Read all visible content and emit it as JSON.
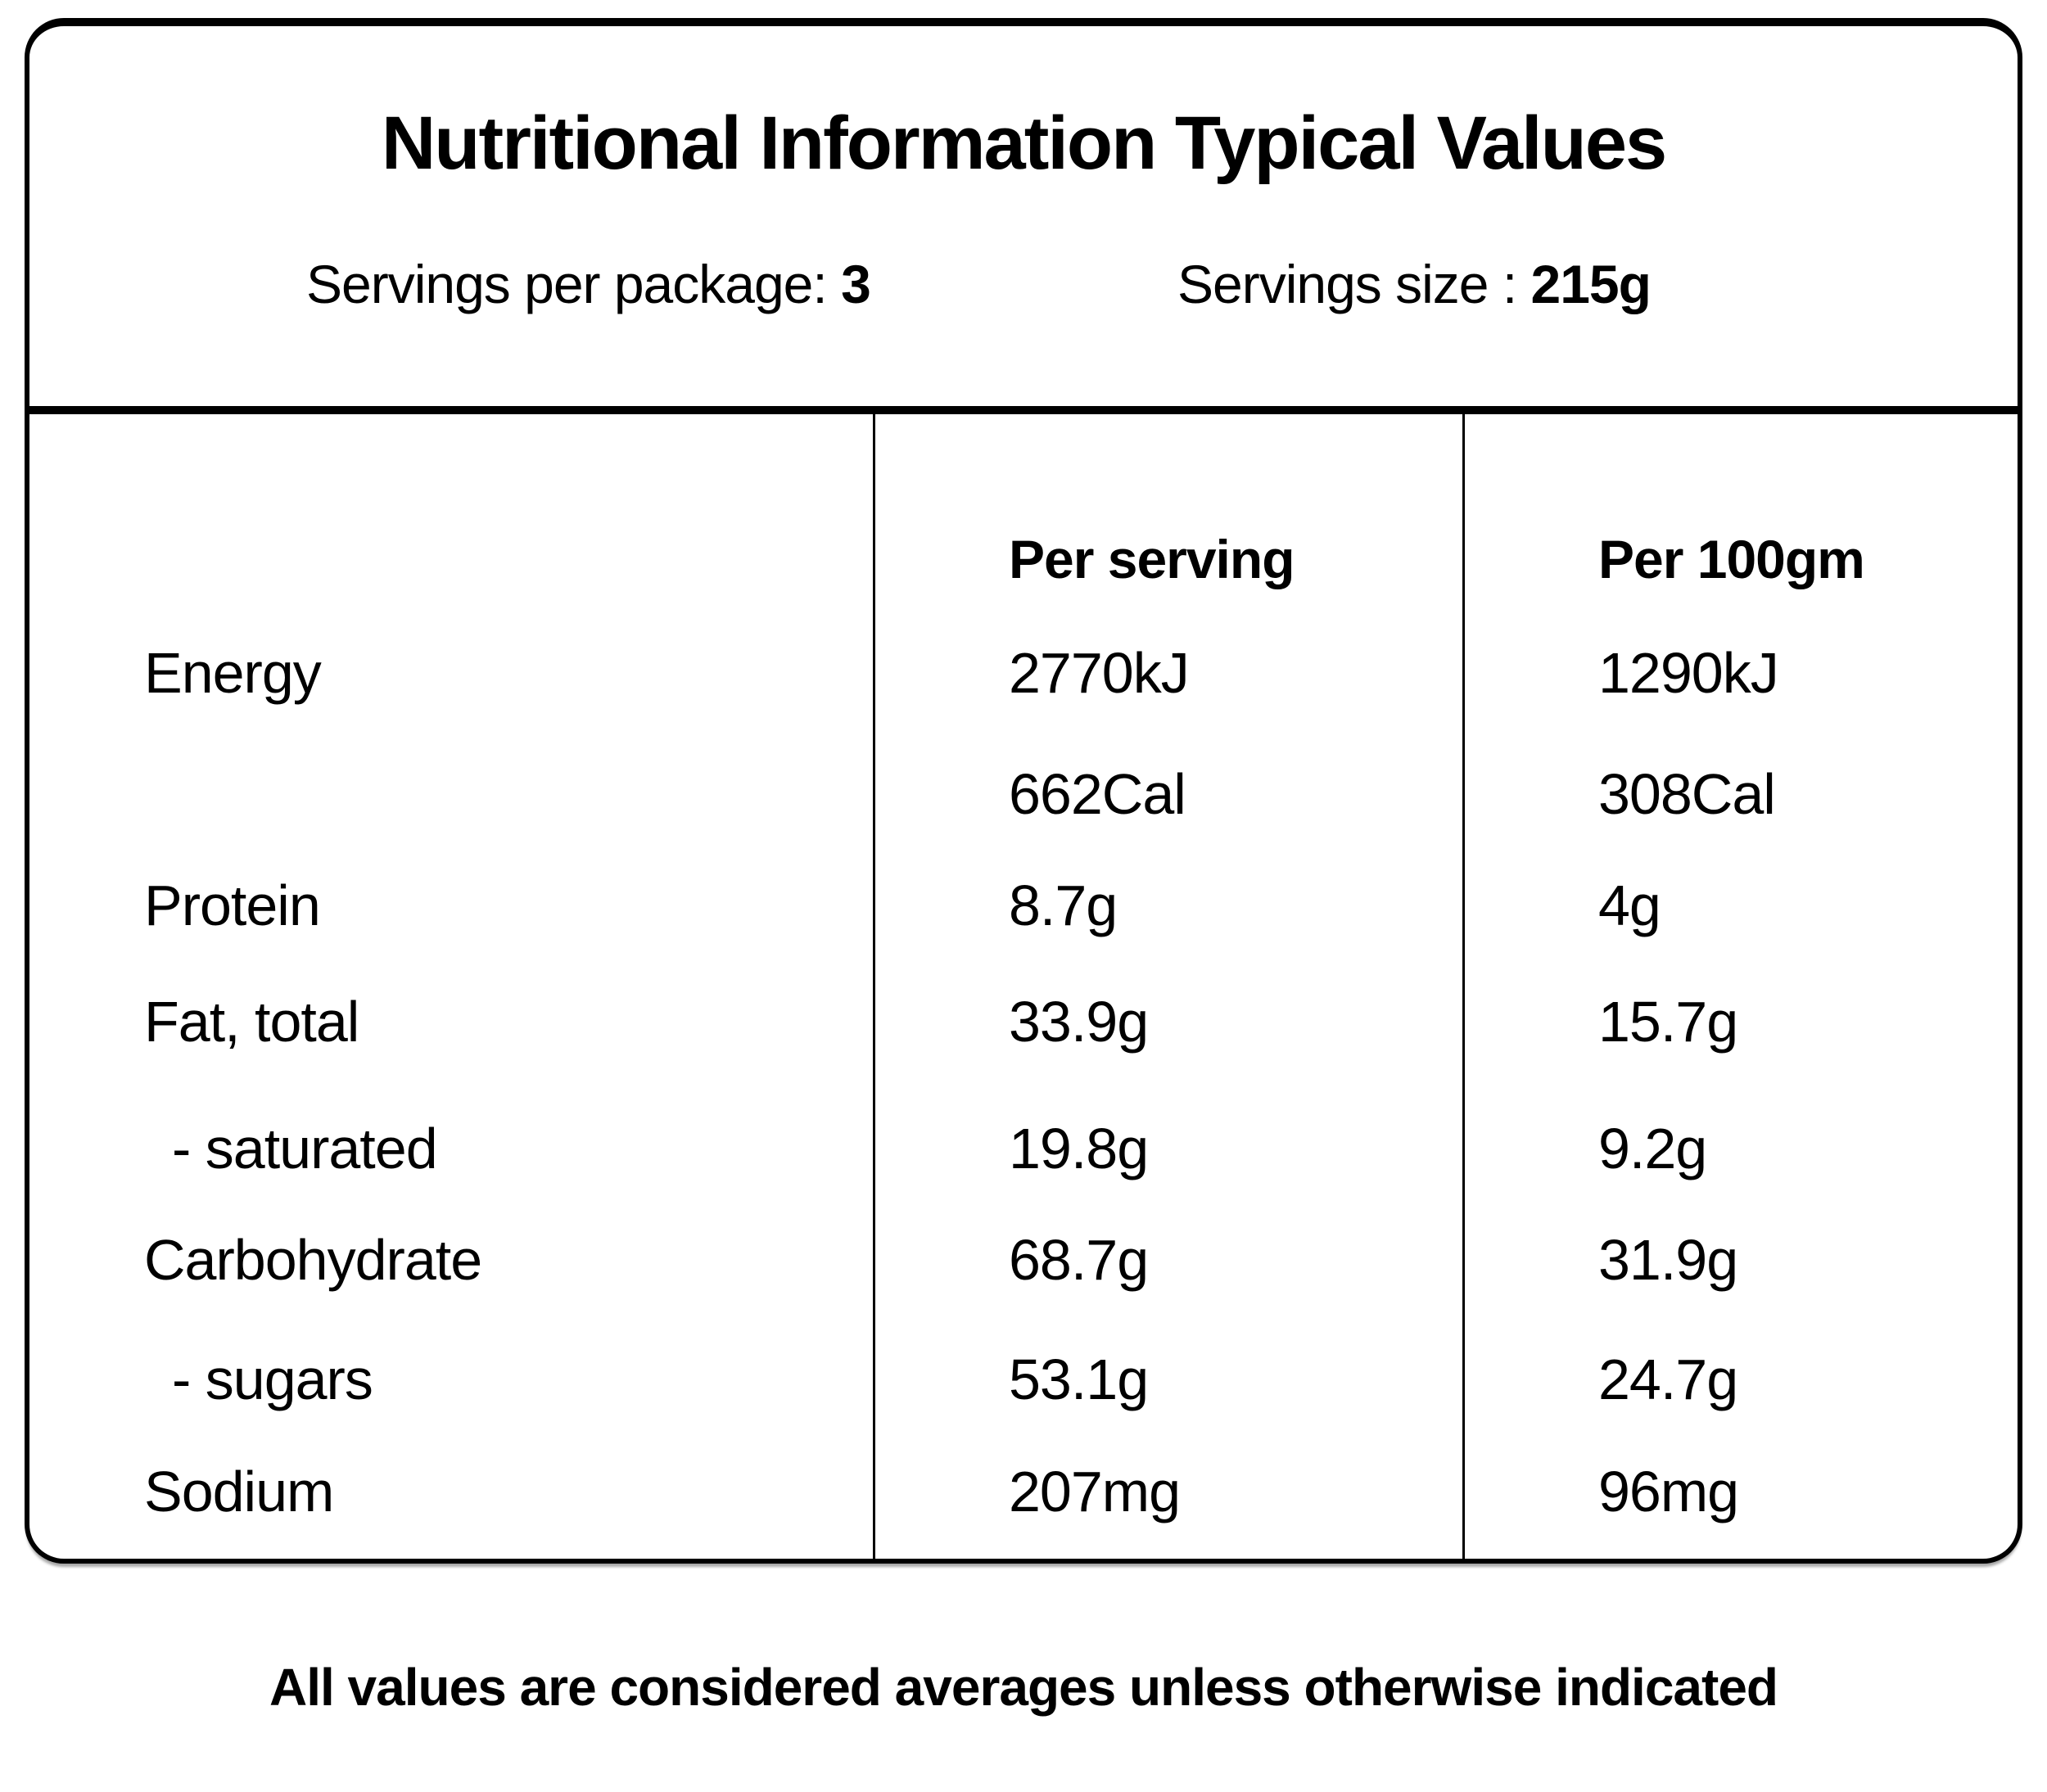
{
  "title": "Nutritional Information Typical Values",
  "servings": {
    "per_package_label": "Servings per package:",
    "per_package_value": "3",
    "size_label": "Servings size :",
    "size_value": "215g"
  },
  "table": {
    "columns": {
      "per_serving": "Per serving",
      "per_100": "Per 100gm"
    },
    "rows": [
      {
        "label": "Energy",
        "per_serving": "2770kJ",
        "per_100": "1290kJ"
      },
      {
        "label": "",
        "per_serving": "662Cal",
        "per_100": "308Cal"
      },
      {
        "label": "Protein",
        "per_serving": "8.7g",
        "per_100": "4g"
      },
      {
        "label": "Fat, total",
        "per_serving": "33.9g",
        "per_100": "15.7g"
      },
      {
        "label": "- saturated",
        "per_serving": "19.8g",
        "per_100": "9.2g"
      },
      {
        "label": "Carbohydrate",
        "per_serving": "68.7g",
        "per_100": "31.9g"
      },
      {
        "label": "- sugars",
        "per_serving": "53.1g",
        "per_100": "24.7g"
      },
      {
        "label": "Sodium",
        "per_serving": "207mg",
        "per_100": "96mg"
      }
    ]
  },
  "footer": "All values are considered averages unless otherwise indicated",
  "colors": {
    "ink": "#000000",
    "background": "#ffffff"
  }
}
